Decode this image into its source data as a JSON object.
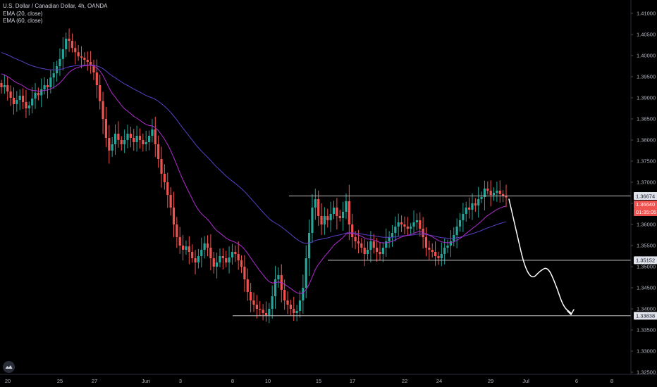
{
  "legend": {
    "title": "U.S. Dollar / Canadian Dollar, 4h, OANDA",
    "ema20": "EMA (20, close)",
    "ema60": "EMA (60, close)"
  },
  "colors": {
    "background": "#000000",
    "up": "#26a69a",
    "down": "#ef5350",
    "ema20": "#b02bcf",
    "ema60": "#5b3fc8",
    "level_line": "#c8c8c8",
    "projection": "#ffffff",
    "current_price": "#ef5350"
  },
  "icons": {
    "logo": "tradingview-logo-icon"
  },
  "chart_data": {
    "type": "candlestick",
    "symbol": "USDCAD",
    "timeframe": "4h",
    "ylim": [
      1.3245,
      1.4125
    ],
    "y_ticks": [
      "1.41000",
      "1.40500",
      "1.40000",
      "1.39500",
      "1.39000",
      "1.38500",
      "1.38000",
      "1.37500",
      "1.37000",
      "1.36500",
      "1.36000",
      "1.35500",
      "1.35000",
      "1.34500",
      "1.34000",
      "1.33500",
      "1.33000",
      "1.32500"
    ],
    "x_ticks": [
      "20",
      "25",
      "27",
      "Jun",
      "3",
      "8",
      "10",
      "15",
      "17",
      "22",
      "24",
      "29",
      "Jul",
      "6",
      "8"
    ],
    "price_labels": [
      {
        "text": "1.36674",
        "value": 1.36674,
        "style": "level"
      },
      {
        "text": "1.36640",
        "value": 1.3664,
        "style": "current"
      },
      {
        "text": "01:35:05",
        "value": 1.365,
        "style": "countdown"
      },
      {
        "text": "1.35152",
        "value": 1.35152,
        "style": "level"
      },
      {
        "text": "1.33838",
        "value": 1.33838,
        "style": "level"
      }
    ],
    "horizontal_levels": [
      1.36674,
      1.35152,
      1.33838
    ],
    "projection_path": [
      1.366,
      1.358,
      1.35,
      1.347,
      1.349,
      1.35,
      1.346,
      1.3405,
      1.339
    ],
    "closes": [
      1.3925,
      1.393,
      1.3915,
      1.39,
      1.3885,
      1.3895,
      1.3905,
      1.389,
      1.3875,
      1.3882,
      1.3898,
      1.3912,
      1.3906,
      1.392,
      1.393,
      1.3925,
      1.3948,
      1.3958,
      1.3975,
      1.3992,
      1.4015,
      1.404,
      1.4035,
      1.4018,
      1.4008,
      1.3998,
      1.3995,
      1.399,
      1.3985,
      1.3978,
      1.396,
      1.393,
      1.3892,
      1.385,
      1.3805,
      1.3775,
      1.379,
      1.3815,
      1.38,
      1.379,
      1.38,
      1.3815,
      1.3805,
      1.3795,
      1.381,
      1.38,
      1.379,
      1.3795,
      1.381,
      1.3825,
      1.379,
      1.3755,
      1.372,
      1.37,
      1.367,
      1.364,
      1.36,
      1.357,
      1.355,
      1.354,
      1.3548,
      1.3535,
      1.352,
      1.351,
      1.3525,
      1.354,
      1.3555,
      1.3545,
      1.352,
      1.35,
      1.351,
      1.3525,
      1.352,
      1.351,
      1.3522,
      1.3535,
      1.353,
      1.3515,
      1.35,
      1.347,
      1.344,
      1.342,
      1.341,
      1.34,
      1.3398,
      1.339,
      1.3385,
      1.34,
      1.343,
      1.347,
      1.348,
      1.3445,
      1.342,
      1.341,
      1.34,
      1.339,
      1.3395,
      1.342,
      1.345,
      1.352,
      1.358,
      1.364,
      1.366,
      1.362,
      1.36,
      1.362,
      1.361,
      1.3625,
      1.364,
      1.362,
      1.3615,
      1.363,
      1.3655,
      1.36,
      1.357,
      1.356,
      1.3555,
      1.3545,
      1.353,
      1.354,
      1.356,
      1.3545,
      1.3535,
      1.353,
      1.3545,
      1.356,
      1.357,
      1.358,
      1.3595,
      1.3605,
      1.36,
      1.3595,
      1.359,
      1.3595,
      1.3605,
      1.361,
      1.359,
      1.357,
      1.3545,
      1.354,
      1.3535,
      1.3525,
      1.352,
      1.353,
      1.3545,
      1.355,
      1.356,
      1.3575,
      1.3595,
      1.361,
      1.3625,
      1.364,
      1.3635,
      1.365,
      1.3645,
      1.366,
      1.3665,
      1.3685,
      1.368,
      1.367,
      1.3675,
      1.368,
      1.3672,
      1.3668,
      1.3664
    ]
  }
}
